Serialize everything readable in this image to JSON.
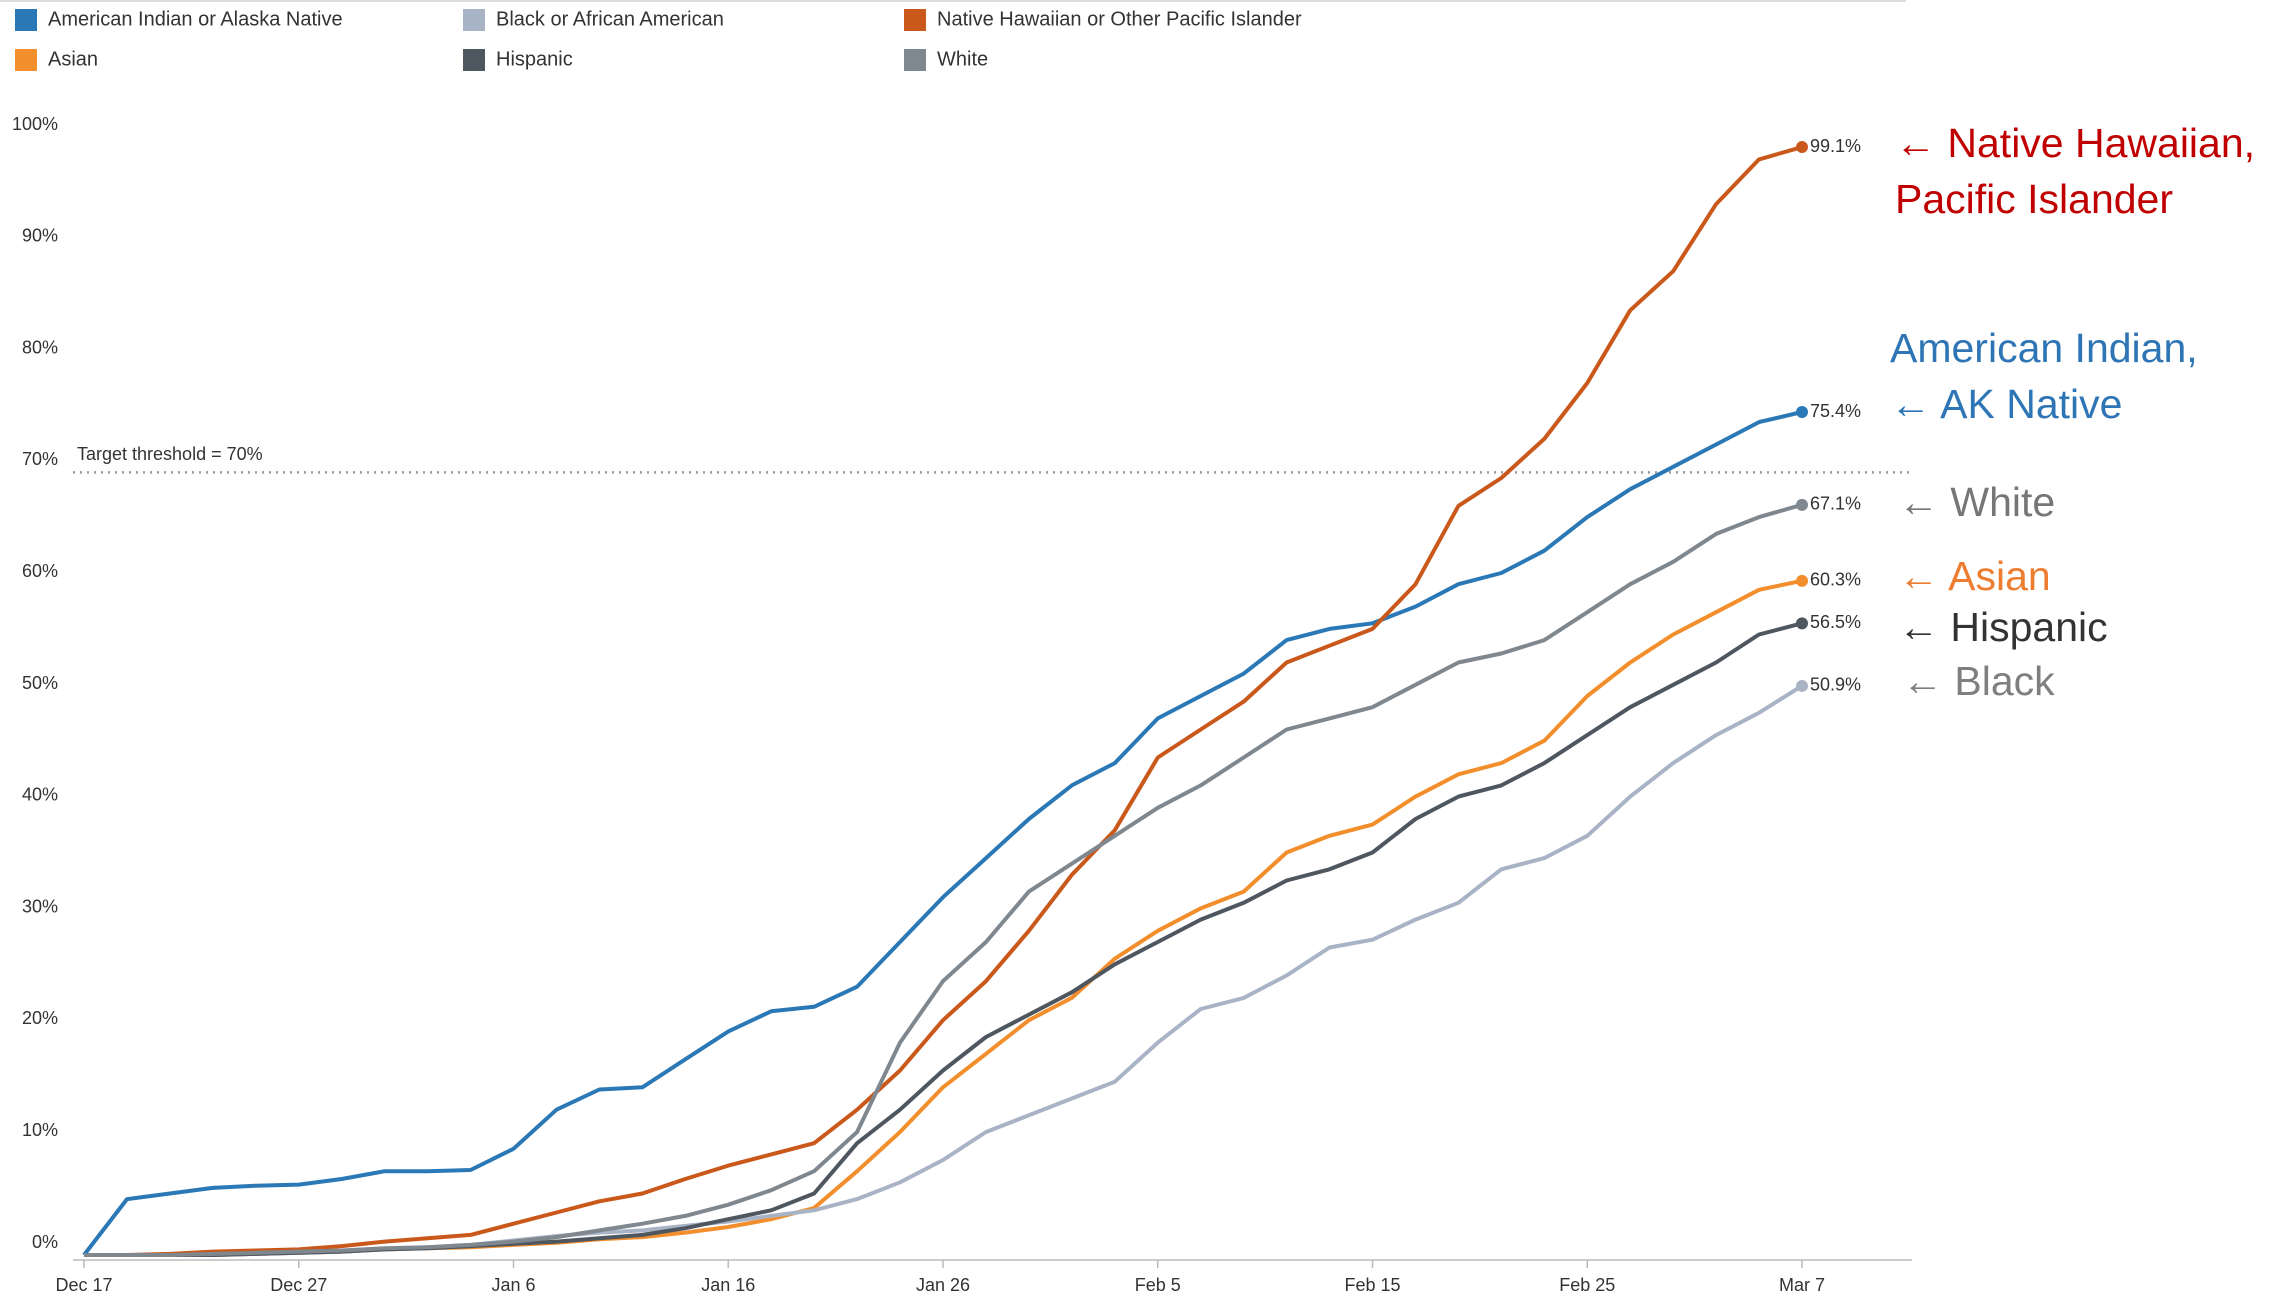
{
  "chart_data": {
    "type": "line",
    "categories": [
      "Dec 17",
      null,
      null,
      null,
      null,
      "Dec 27",
      null,
      null,
      null,
      null,
      "Jan 6",
      null,
      null,
      null,
      null,
      "Jan 16",
      null,
      null,
      null,
      null,
      "Jan 26",
      null,
      null,
      null,
      null,
      "Feb 5",
      null,
      null,
      null,
      null,
      "Feb 15",
      null,
      null,
      null,
      null,
      "Feb 25",
      null,
      null,
      null,
      null,
      "Mar 7"
    ],
    "ylim": [
      0,
      100
    ],
    "yticks": [
      {
        "value": 0,
        "label": "0%"
      },
      {
        "value": 10,
        "label": "10%"
      },
      {
        "value": 20,
        "label": "20%"
      },
      {
        "value": 30,
        "label": "30%"
      },
      {
        "value": 40,
        "label": "40%"
      },
      {
        "value": 50,
        "label": "50%"
      },
      {
        "value": 60,
        "label": "60%"
      },
      {
        "value": 70,
        "label": "70%"
      },
      {
        "value": 80,
        "label": "80%"
      },
      {
        "value": 90,
        "label": "90%"
      },
      {
        "value": 100,
        "label": "100%"
      }
    ],
    "threshold": {
      "value": 70,
      "label": "Target threshold = 70%"
    },
    "series": [
      {
        "name": "American Indian or Alaska Native",
        "color": "#2a78b5",
        "values": [
          0,
          5,
          5.5,
          6,
          6.2,
          6.3,
          6.8,
          7.5,
          7.5,
          7.6,
          9.5,
          13,
          14.8,
          15,
          17.5,
          20,
          21.8,
          22.2,
          24,
          28,
          32,
          35.5,
          39,
          42,
          44,
          48,
          50,
          52,
          55,
          56,
          56.5,
          58,
          60,
          61,
          63,
          66,
          68.5,
          70.5,
          72.5,
          74.5,
          75.4
        ],
        "value_labels": [
          null,
          null,
          null,
          null,
          null,
          null,
          null,
          null,
          null,
          null,
          null,
          null,
          null,
          null,
          null,
          null,
          null,
          null,
          null,
          null,
          null,
          null,
          null,
          null,
          null,
          null,
          null,
          null,
          null,
          null,
          null,
          null,
          null,
          null,
          null,
          null,
          null,
          null,
          null,
          null,
          "75.4%"
        ]
      },
      {
        "name": "Asian",
        "color": "#f28e2b",
        "values": [
          0,
          0,
          0,
          0,
          0.1,
          0.2,
          0.3,
          0.5,
          0.6,
          0.7,
          0.9,
          1.1,
          1.4,
          1.6,
          2,
          2.5,
          3.2,
          4.2,
          7.5,
          11,
          15,
          18,
          21,
          23,
          26.5,
          29,
          31,
          32.5,
          36,
          37.5,
          38.5,
          41,
          43,
          44,
          46,
          50,
          53,
          55.5,
          57.5,
          59.5,
          60.3
        ],
        "value_labels": [
          null,
          null,
          null,
          null,
          null,
          null,
          null,
          null,
          null,
          null,
          null,
          null,
          null,
          null,
          null,
          null,
          null,
          null,
          null,
          null,
          null,
          null,
          null,
          null,
          null,
          null,
          null,
          null,
          null,
          null,
          null,
          null,
          null,
          null,
          null,
          null,
          null,
          null,
          null,
          null,
          "60.3%"
        ]
      },
      {
        "name": "Black or African American",
        "color": "#a9b3c6",
        "values": [
          0,
          0,
          0,
          0,
          0.1,
          0.2,
          0.3,
          0.5,
          0.7,
          0.9,
          1.3,
          1.7,
          2,
          2.2,
          2.6,
          3,
          3.5,
          4,
          5,
          6.5,
          8.5,
          11,
          12.5,
          14,
          15.5,
          19,
          22,
          23,
          25,
          27.5,
          28.2,
          30,
          31.5,
          34.5,
          35.5,
          37.5,
          41,
          44,
          46.5,
          48.5,
          50.9
        ],
        "value_labels": [
          null,
          null,
          null,
          null,
          null,
          null,
          null,
          null,
          null,
          null,
          null,
          null,
          null,
          null,
          null,
          null,
          null,
          null,
          null,
          null,
          null,
          null,
          null,
          null,
          null,
          null,
          null,
          null,
          null,
          null,
          null,
          null,
          null,
          null,
          null,
          null,
          null,
          null,
          null,
          null,
          "50.9%"
        ]
      },
      {
        "name": "Hispanic",
        "color": "#4e5660",
        "values": [
          0,
          0,
          0,
          0,
          0.1,
          0.2,
          0.3,
          0.5,
          0.6,
          0.8,
          1,
          1.2,
          1.5,
          1.8,
          2.4,
          3.2,
          4,
          5.5,
          10,
          13,
          16.5,
          19.5,
          21.5,
          23.5,
          26,
          28,
          30,
          31.5,
          33.5,
          34.5,
          36,
          39,
          41,
          42,
          44,
          46.5,
          49,
          51,
          53,
          55.5,
          56.5
        ],
        "value_labels": [
          null,
          null,
          null,
          null,
          null,
          null,
          null,
          null,
          null,
          null,
          null,
          null,
          null,
          null,
          null,
          null,
          null,
          null,
          null,
          null,
          null,
          null,
          null,
          null,
          null,
          null,
          null,
          null,
          null,
          null,
          null,
          null,
          null,
          null,
          null,
          null,
          null,
          null,
          null,
          null,
          "56.5%"
        ]
      },
      {
        "name": "Native Hawaiian or Other Pacific Islander",
        "color": "#c9581a",
        "values": [
          0,
          0,
          0.1,
          0.3,
          0.4,
          0.5,
          0.8,
          1.2,
          1.5,
          1.8,
          2.8,
          3.8,
          4.8,
          5.5,
          6.8,
          8,
          9,
          10,
          13,
          16.5,
          21,
          24.5,
          29,
          34,
          38,
          44.5,
          47,
          49.5,
          53,
          54.5,
          56,
          60,
          67,
          69.5,
          73,
          78,
          84.5,
          88,
          94,
          98,
          99.1
        ],
        "value_labels": [
          null,
          null,
          null,
          null,
          null,
          null,
          null,
          null,
          null,
          null,
          null,
          null,
          null,
          null,
          null,
          null,
          null,
          null,
          null,
          null,
          null,
          null,
          null,
          null,
          null,
          null,
          null,
          null,
          null,
          null,
          null,
          null,
          null,
          null,
          null,
          null,
          null,
          null,
          null,
          null,
          "99.1%"
        ]
      },
      {
        "name": "White",
        "color": "#7f878f",
        "values": [
          0,
          0,
          0,
          0.1,
          0.2,
          0.3,
          0.4,
          0.6,
          0.7,
          0.9,
          1.2,
          1.6,
          2.2,
          2.8,
          3.5,
          4.5,
          5.8,
          7.5,
          11,
          19,
          24.5,
          28,
          32.5,
          35,
          37.5,
          40,
          42,
          44.5,
          47,
          48,
          49,
          51,
          53,
          53.8,
          55,
          57.5,
          60,
          62,
          64.5,
          66,
          67.1
        ],
        "value_labels": [
          null,
          null,
          null,
          null,
          null,
          null,
          null,
          null,
          null,
          null,
          null,
          null,
          null,
          null,
          null,
          null,
          null,
          null,
          null,
          null,
          null,
          null,
          null,
          null,
          null,
          null,
          null,
          null,
          null,
          null,
          null,
          null,
          null,
          null,
          null,
          null,
          null,
          null,
          null,
          null,
          "67.1%"
        ]
      }
    ],
    "annotations": [
      {
        "color": "#c00000",
        "lines": [
          "← Native Hawaiian,",
          "Pacific Islander"
        ]
      },
      {
        "color": "#2e75b6",
        "lines": [
          "American Indian,",
          "← AK Native"
        ]
      },
      {
        "color": "#767676",
        "lines": [
          "← White"
        ]
      },
      {
        "color": "#ed7d31",
        "lines": [
          "← Asian"
        ]
      },
      {
        "color": "#333333",
        "lines": [
          "← Hispanic"
        ]
      },
      {
        "color": "#7f7f7f",
        "lines": [
          "← Black"
        ]
      }
    ]
  }
}
